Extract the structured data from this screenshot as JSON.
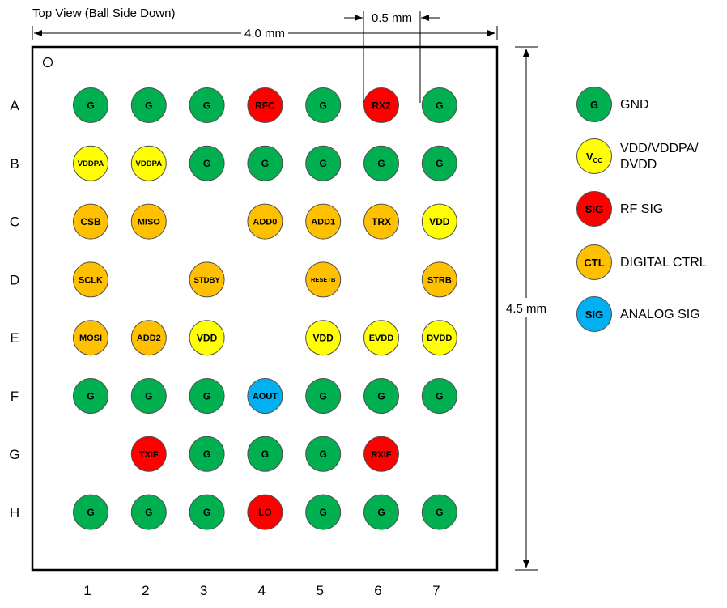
{
  "title": "Top View (Ball Side Down)",
  "dimensions": {
    "width": "4.0 mm",
    "height": "4.5 mm",
    "pitch": "0.5 mm"
  },
  "rows": [
    "A",
    "B",
    "C",
    "D",
    "E",
    "F",
    "G",
    "H"
  ],
  "columns": [
    "1",
    "2",
    "3",
    "4",
    "5",
    "6",
    "7"
  ],
  "colors": {
    "G": "#00b050",
    "Y": "#ffff00",
    "R": "#ff0000",
    "O": "#ffc000",
    "B": "#00b0f0"
  },
  "grid": [
    [
      [
        "G",
        "G"
      ],
      [
        "G",
        "G"
      ],
      [
        "G",
        "G"
      ],
      [
        "RFC",
        "R"
      ],
      [
        "G",
        "G"
      ],
      [
        "RX2",
        "R"
      ],
      [
        "G",
        "G"
      ]
    ],
    [
      [
        "VDDPA",
        "Y"
      ],
      [
        "VDDPA",
        "Y"
      ],
      [
        "G",
        "G"
      ],
      [
        "G",
        "G"
      ],
      [
        "G",
        "G"
      ],
      [
        "G",
        "G"
      ],
      [
        "G",
        "G"
      ]
    ],
    [
      [
        "CSB",
        "O"
      ],
      [
        "MISO",
        "O"
      ],
      null,
      [
        "ADD0",
        "O"
      ],
      [
        "ADD1",
        "O"
      ],
      [
        "TRX",
        "O"
      ],
      [
        "VDD",
        "Y"
      ]
    ],
    [
      [
        "SCLK",
        "O"
      ],
      null,
      [
        "STDBY",
        "O"
      ],
      null,
      [
        "RESETB",
        "O"
      ],
      null,
      [
        "STRB",
        "O"
      ]
    ],
    [
      [
        "MOSI",
        "O"
      ],
      [
        "ADD2",
        "O"
      ],
      [
        "VDD",
        "Y"
      ],
      null,
      [
        "VDD",
        "Y"
      ],
      [
        "EVDD",
        "Y"
      ],
      [
        "DVDD",
        "Y"
      ]
    ],
    [
      [
        "G",
        "G"
      ],
      [
        "G",
        "G"
      ],
      [
        "G",
        "G"
      ],
      [
        "AOUT",
        "B"
      ],
      [
        "G",
        "G"
      ],
      [
        "G",
        "G"
      ],
      [
        "G",
        "G"
      ]
    ],
    [
      null,
      [
        "TXIF",
        "R"
      ],
      [
        "G",
        "G"
      ],
      [
        "G",
        "G"
      ],
      [
        "G",
        "G"
      ],
      [
        "RXIF",
        "R"
      ],
      null
    ],
    [
      [
        "G",
        "G"
      ],
      [
        "G",
        "G"
      ],
      [
        "G",
        "G"
      ],
      [
        "LO",
        "R"
      ],
      [
        "G",
        "G"
      ],
      [
        "G",
        "G"
      ],
      [
        "G",
        "G"
      ]
    ]
  ],
  "legend": [
    {
      "symbol": "G",
      "sub": "",
      "color": "G",
      "label": "GND"
    },
    {
      "symbol": "V",
      "sub": "CC",
      "color": "Y",
      "label": "VDD/VDDPA/\nDVDD"
    },
    {
      "symbol": "SIG",
      "sub": "",
      "color": "R",
      "label": "RF SIG"
    },
    {
      "symbol": "CTL",
      "sub": "",
      "color": "O",
      "label": "DIGITAL CTRL"
    },
    {
      "symbol": "SIG",
      "sub": "",
      "color": "B",
      "label": "ANALOG SIG"
    }
  ]
}
